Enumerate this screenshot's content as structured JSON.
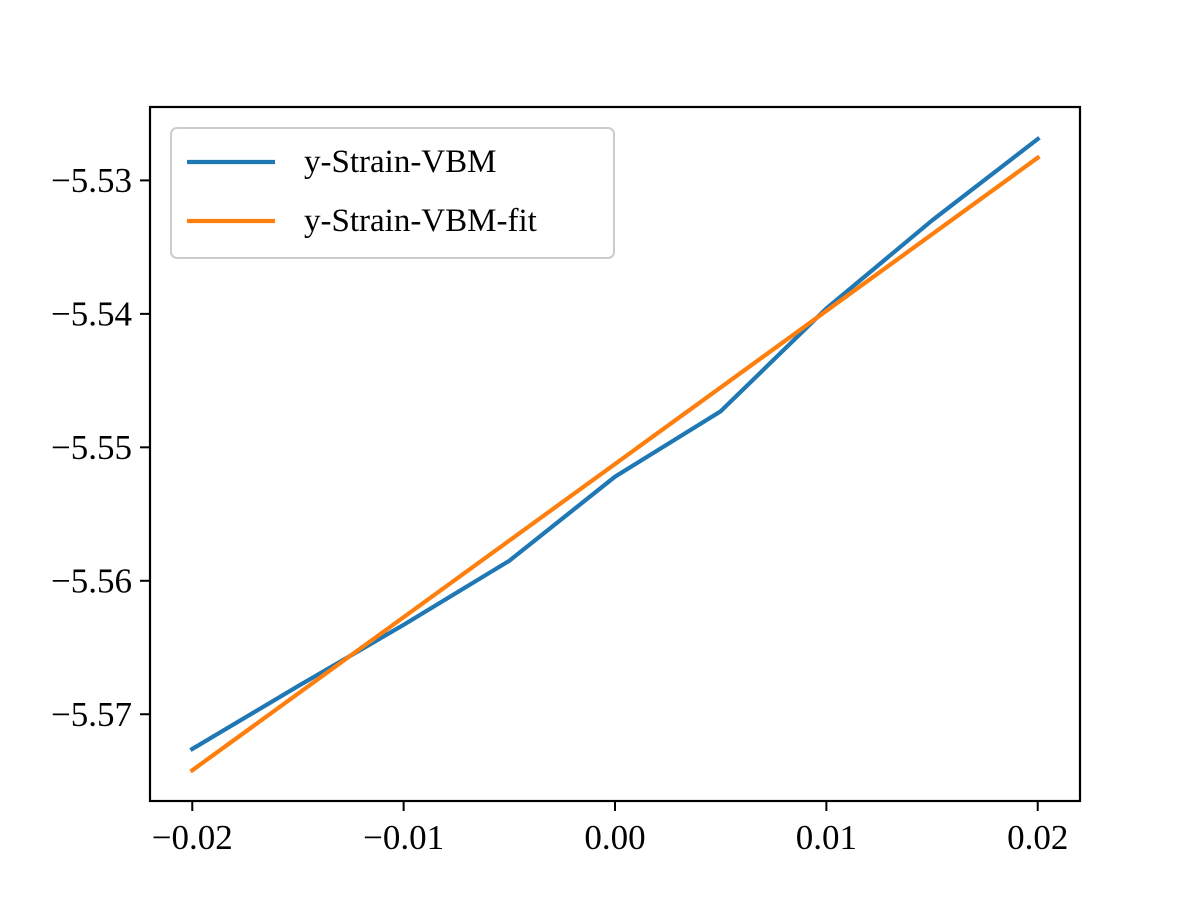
{
  "chart_data": {
    "type": "line",
    "title": "",
    "xlabel": "",
    "ylabel": "",
    "xlim": [
      -0.022,
      0.022
    ],
    "ylim": [
      -5.5765,
      -5.5245
    ],
    "x_ticks": [
      -0.02,
      -0.01,
      0.0,
      0.01,
      0.02
    ],
    "x_tick_labels": [
      "−0.02",
      "−0.01",
      "0.00",
      "0.01",
      "0.02"
    ],
    "y_ticks": [
      -5.57,
      -5.56,
      -5.55,
      -5.54,
      -5.53
    ],
    "y_tick_labels": [
      "−5.57",
      "−5.56",
      "−5.55",
      "−5.54",
      "−5.53"
    ],
    "grid": false,
    "legend_position": "upper-left",
    "series": [
      {
        "name": "y-Strain-VBM",
        "color": "#1f77b4",
        "x": [
          -0.02,
          -0.015,
          -0.01,
          -0.005,
          0.0,
          0.005,
          0.01,
          0.015,
          0.02
        ],
        "y": [
          -5.5726,
          -5.5679,
          -5.5633,
          -5.5585,
          -5.5522,
          -5.5473,
          -5.5396,
          -5.533,
          -5.5269
        ]
      },
      {
        "name": "y-Strain-VBM-fit",
        "color": "#ff7f0e",
        "x": [
          -0.02,
          0.02
        ],
        "y": [
          -5.5742,
          -5.5283
        ]
      }
    ]
  }
}
